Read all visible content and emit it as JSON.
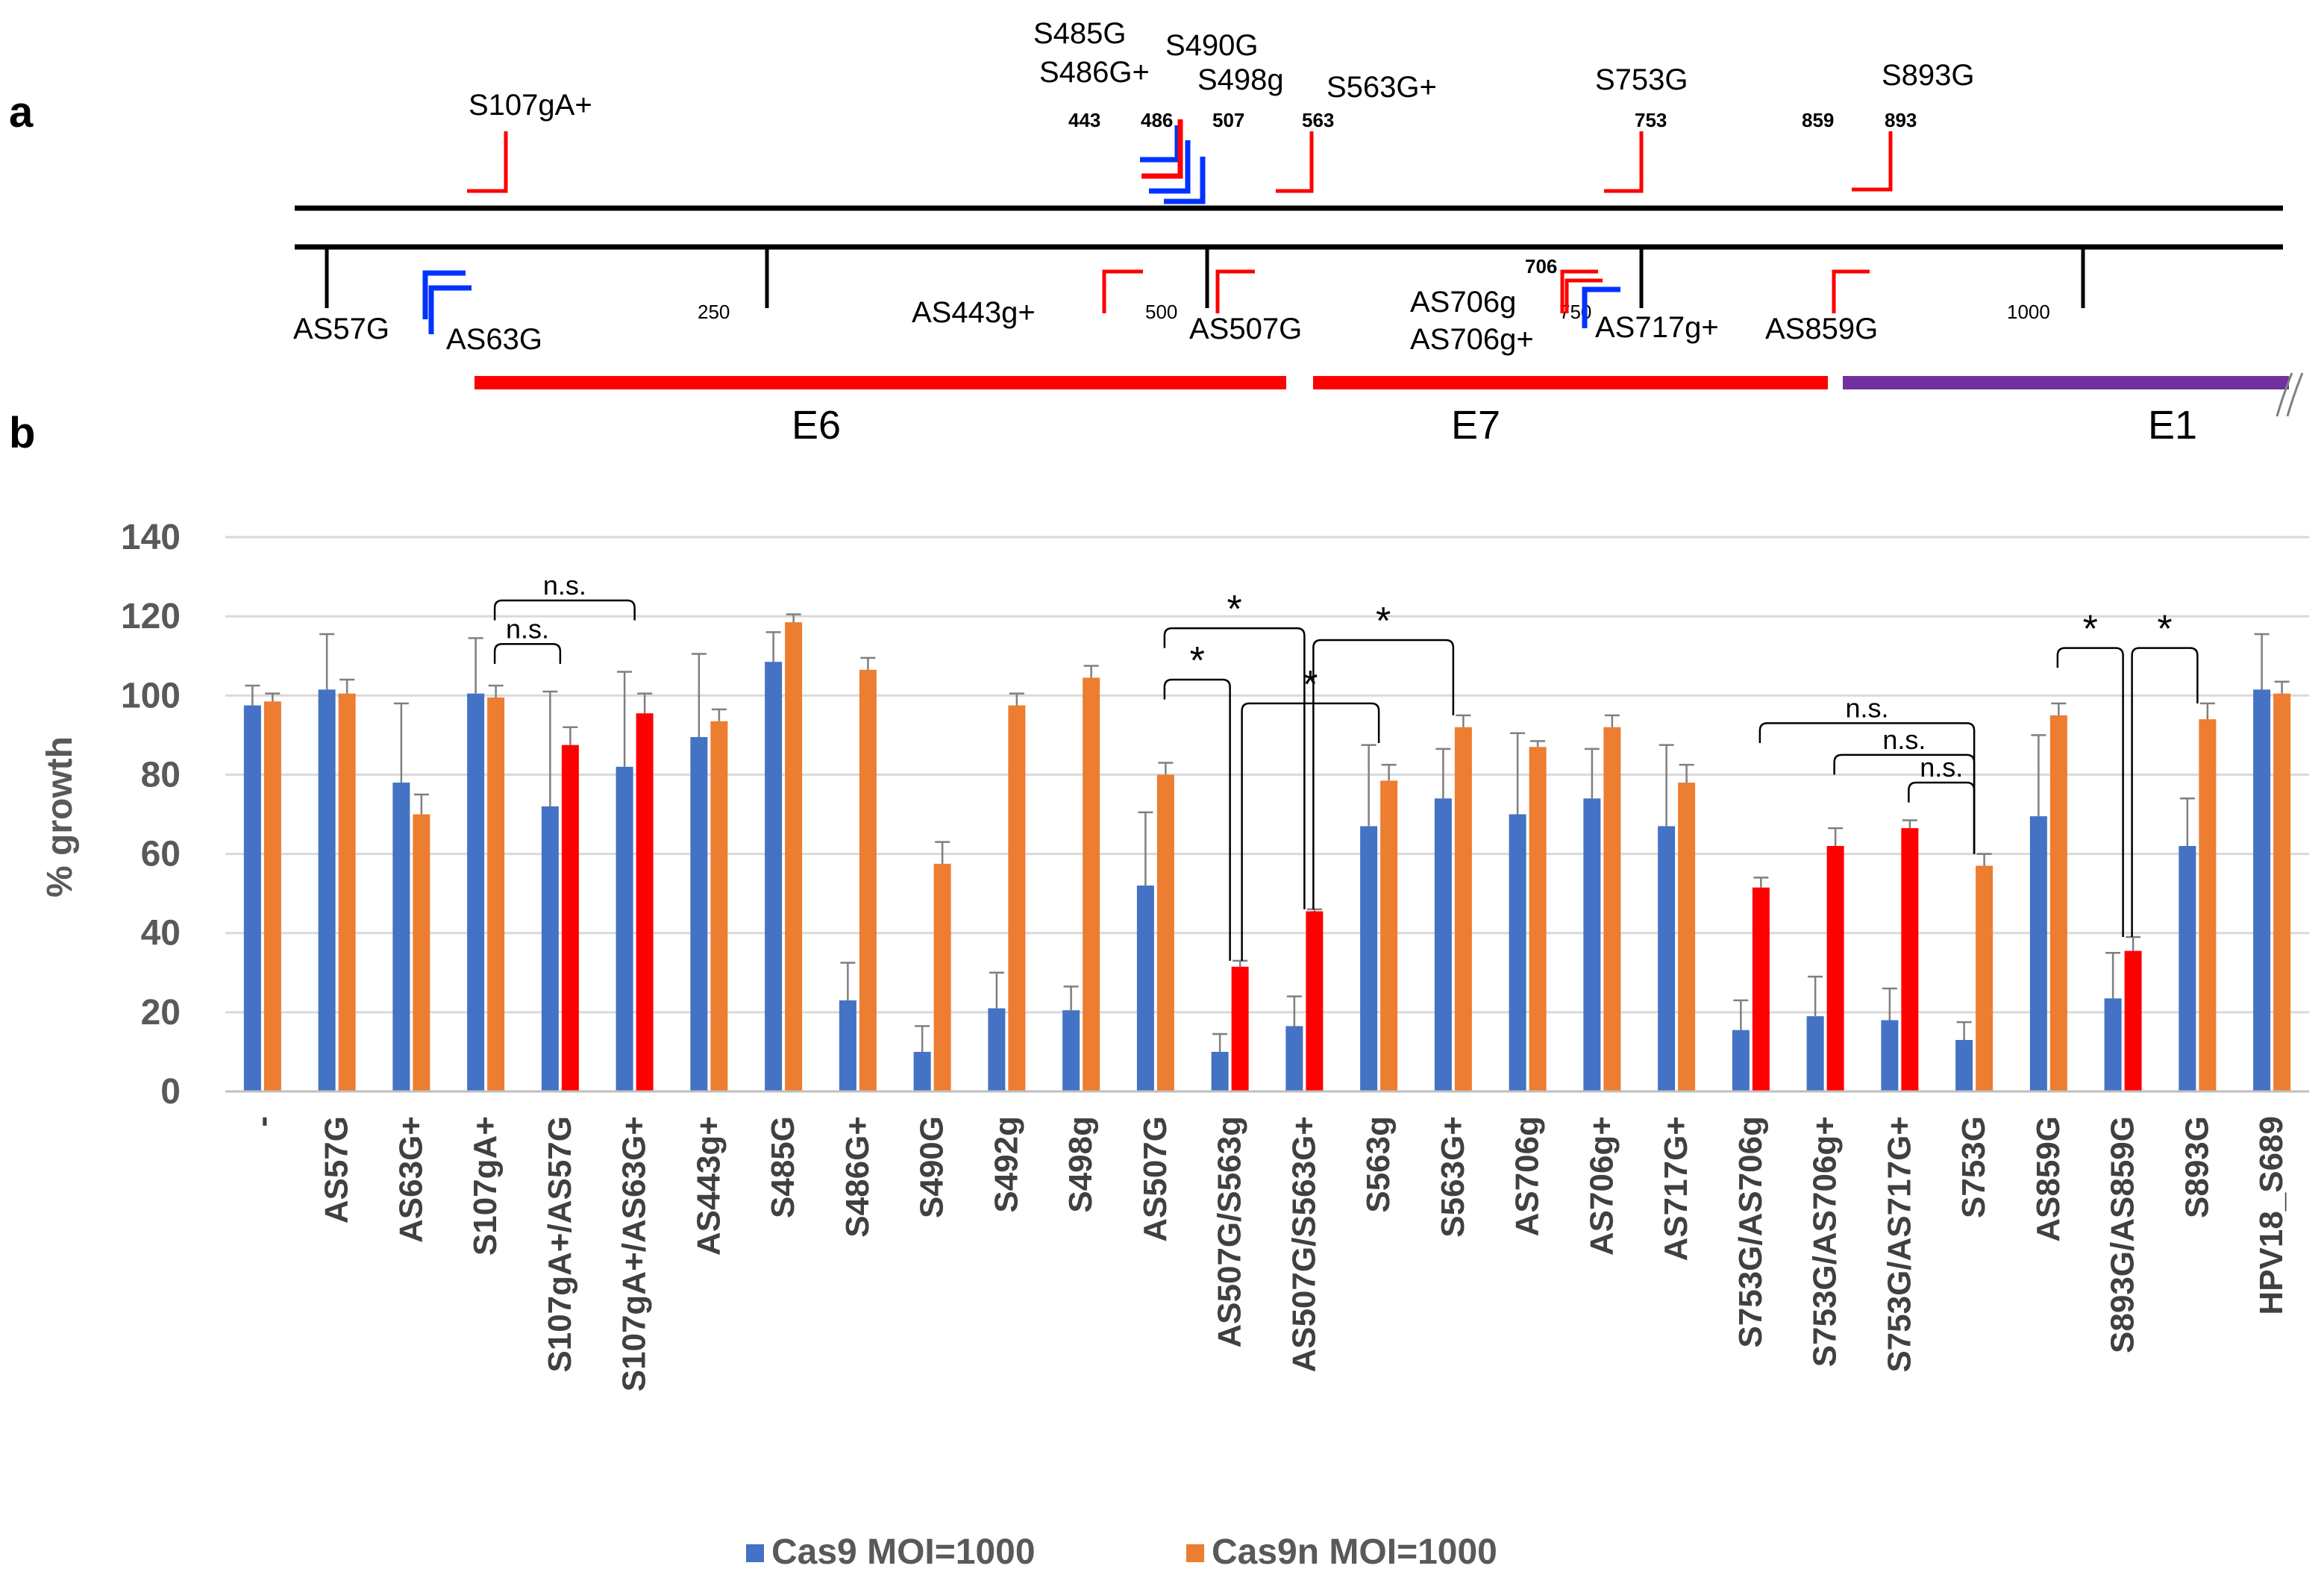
{
  "panel_a": {
    "label": "a",
    "sense_guides": [
      {
        "label": "S107gA+",
        "pos": 107,
        "color": "#ff0000"
      },
      {
        "label": "S485G",
        "pos": 485,
        "color": "#0033ff"
      },
      {
        "label": "S486G+",
        "pos": 486,
        "color": "#ff0000"
      },
      {
        "label": "S490G",
        "pos": 490,
        "color": "#0033ff"
      },
      {
        "label": "S498g",
        "pos": 498,
        "color": "#0033ff"
      },
      {
        "label": "S563G+",
        "pos": 563,
        "color": "#ff0000"
      },
      {
        "label": "S753G",
        "pos": 753,
        "color": "#ff0000"
      },
      {
        "label": "S893G",
        "pos": 893,
        "color": "#ff0000"
      }
    ],
    "top_positions": [
      "443",
      "486",
      "507",
      "563",
      "753",
      "859",
      "893"
    ],
    "antisense_guides": [
      {
        "label": "AS57G",
        "pos": 57,
        "color": "#0033ff"
      },
      {
        "label": "AS63G",
        "pos": 63,
        "color": "#0033ff"
      },
      {
        "label": "AS443g+",
        "pos": 443,
        "color": "#ff0000"
      },
      {
        "label": "AS507G",
        "pos": 507,
        "color": "#ff0000"
      },
      {
        "label": "AS706g",
        "pos": 706,
        "color": "#ff0000"
      },
      {
        "label": "AS706g+",
        "pos": 706,
        "color": "#ff0000"
      },
      {
        "label": "AS717g+",
        "pos": 717,
        "color": "#0033ff"
      },
      {
        "label": "AS859G",
        "pos": 859,
        "color": "#ff0000"
      }
    ],
    "bottom_position": "706",
    "scale_ticks": [
      "250",
      "500",
      "750",
      "1000"
    ],
    "genes": [
      {
        "name": "E6",
        "color": "#ff0000"
      },
      {
        "name": "E7",
        "color": "#ff0000"
      },
      {
        "name": "E1",
        "color": "#7030a0"
      }
    ]
  },
  "panel_b": {
    "label": "b"
  },
  "chart_data": {
    "type": "bar",
    "ylabel": "% growth",
    "ylim": [
      0,
      140
    ],
    "yticks": [
      "0",
      "20",
      "40",
      "60",
      "80",
      "100",
      "120",
      "140"
    ],
    "categories": [
      "-",
      "AS57G",
      "AS63G+",
      "S107gA+",
      "S107gA+/AS57G",
      "S107gA+/AS63G+",
      "AS443g+",
      "S485G",
      "S486G+",
      "S490G",
      "S492g",
      "S498g",
      "AS507G",
      "AS507G/S563g",
      "AS507G/S563G+",
      "S563g",
      "S563G+",
      "AS706g",
      "AS706g+",
      "AS717G+",
      "S753G/AS706g",
      "S753G/AS706g+",
      "S753G/AS717G+",
      "S753G",
      "AS859G",
      "S893G/AS859G",
      "S893G",
      "HPV18_S689"
    ],
    "series": [
      {
        "name": "Cas9 MOI=1000",
        "color": "#4472c4",
        "values": [
          97.5,
          101.5,
          78,
          100.5,
          72,
          82,
          89.5,
          108.5,
          23,
          10,
          21,
          20.5,
          52,
          10,
          16.5,
          67,
          74,
          70,
          74,
          67,
          15.5,
          19,
          18,
          13,
          69.5,
          23.5,
          62,
          101.5
        ],
        "errors": [
          5,
          14,
          20,
          14,
          29,
          24,
          21,
          7.5,
          9.5,
          6.5,
          9,
          6,
          18.5,
          4.5,
          7.5,
          20.5,
          12.5,
          20.5,
          12.5,
          20.5,
          7.5,
          10,
          8,
          4.5,
          20.5,
          11.5,
          12,
          14
        ]
      },
      {
        "name": "Cas9n MOI=1000",
        "color": "#ed7d31",
        "values": [
          98.5,
          100.5,
          70,
          99.5,
          87.5,
          95.5,
          93.5,
          118.5,
          106.5,
          57.5,
          97.5,
          104.5,
          80,
          31.5,
          45.5,
          78.5,
          92,
          87,
          92,
          78,
          51.5,
          62,
          66.5,
          57,
          95,
          35.5,
          94,
          100.5
        ],
        "errors": [
          2,
          3.5,
          5,
          3,
          4.5,
          5,
          3,
          2,
          3,
          5.5,
          3,
          3,
          3,
          1.5,
          0.5,
          4,
          3,
          1.5,
          3,
          4.5,
          2.5,
          4.5,
          2,
          3,
          3,
          3.5,
          4,
          3
        ]
      }
    ],
    "red_highlight_categories": [
      "S107gA+/AS57G",
      "S107gA+/AS63G+",
      "AS507G/S563g",
      "AS507G/S563G+",
      "S753G/AS706g",
      "S753G/AS706g+",
      "S753G/AS717G+",
      "S893G/AS859G"
    ],
    "red_highlight_color": "#ff0000",
    "significance": [
      {
        "from": "S107gA+",
        "to": "S107gA+/AS57G",
        "label": "n.s."
      },
      {
        "from": "S107gA+",
        "to": "S107gA+/AS63G+",
        "label": "n.s."
      },
      {
        "from": "AS507G",
        "to": "AS507G/S563g",
        "label": "*"
      },
      {
        "from": "AS507G",
        "to": "AS507G/S563G+",
        "label": "*"
      },
      {
        "from": "AS507G/S563g",
        "to": "S563g",
        "label": "*"
      },
      {
        "from": "AS507G/S563G+",
        "to": "S563G+",
        "label": "*"
      },
      {
        "from": "S753G/AS706g",
        "to": "S753G",
        "label": "n.s."
      },
      {
        "from": "S753G/AS706g+",
        "to": "S753G",
        "label": "n.s."
      },
      {
        "from": "S753G/AS717G+",
        "to": "S753G",
        "label": "n.s."
      },
      {
        "from": "AS859G",
        "to": "S893G/AS859G",
        "label": "*"
      },
      {
        "from": "S893G/AS859G",
        "to": "S893G",
        "label": "*"
      }
    ],
    "legend": [
      "Cas9 MOI=1000",
      "Cas9n MOI=1000"
    ],
    "legend_position": "bottom-center"
  }
}
